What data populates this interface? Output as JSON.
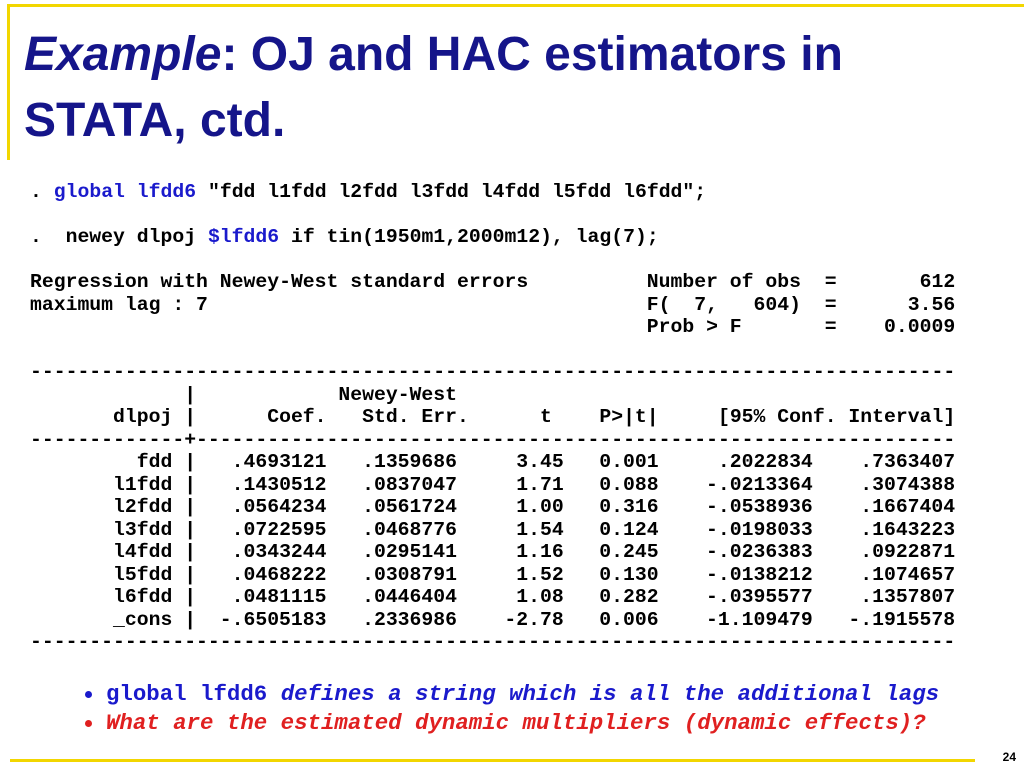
{
  "title": {
    "italic": "Example",
    "rest": ": OJ and HAC estimators in STATA, ctd."
  },
  "commands": [
    {
      "prefix": ".",
      "keyword": "global lfdd6",
      "rest": "\"fdd l1fdd l2fdd l3fdd l4fdd l5fdd l6fdd\";"
    },
    {
      "prefix": ".  newey dlpoj",
      "keyword": "$lfdd6",
      "rest": "if tin(1950m1,2000m12), lag(7);"
    }
  ],
  "summary": [
    {
      "left": "Regression with Newey-West standard errors",
      "right": "Number of obs  =       612"
    },
    {
      "left": "maximum lag : 7",
      "right": "F(  7,   604)  =      3.56"
    },
    {
      "right": "Prob > F       =    0.0009"
    }
  ],
  "table": {
    "rule_top": "------------------------------------------------------------------------------",
    "header_lines": [
      "             |            Newey-West",
      "       dlpoj |      Coef.   Std. Err.      t    P>|t|     [95% Conf. Interval]"
    ],
    "rule_mid": "-------------+----------------------------------------------------------------",
    "rows": [
      [
        "fdd",
        ".4693121",
        ".1359686",
        "3.45",
        "0.001",
        ".2022834",
        ".7363407"
      ],
      [
        "l1fdd",
        ".1430512",
        ".0837047",
        "1.71",
        "0.088",
        "-.0213364",
        ".3074388"
      ],
      [
        "l2fdd",
        ".0564234",
        ".0561724",
        "1.00",
        "0.316",
        "-.0538936",
        ".1667404"
      ],
      [
        "l3fdd",
        ".0722595",
        ".0468776",
        "1.54",
        "0.124",
        "-.0198033",
        ".1643223"
      ],
      [
        "l4fdd",
        ".0343244",
        ".0295141",
        "1.16",
        "0.245",
        "-.0236383",
        ".0922871"
      ],
      [
        "l5fdd",
        ".0468222",
        ".0308791",
        "1.52",
        "0.130",
        "-.0138212",
        ".1074657"
      ],
      [
        "l6fdd",
        ".0481115",
        ".0446404",
        "1.08",
        "0.282",
        "-.0395577",
        ".1357807"
      ],
      [
        "_cons",
        "-.6505183",
        ".2336986",
        "-2.78",
        "0.006",
        "-1.109479",
        "-.1915578"
      ]
    ],
    "rule_bottom": "------------------------------------------------------------------------------"
  },
  "bullets": [
    {
      "code": "global lfdd6",
      "text": "defines a string which is all the additional lags"
    },
    {
      "text": "What are the estimated dynamic multipliers (dynamic effects)?"
    }
  ],
  "page_number": "24"
}
